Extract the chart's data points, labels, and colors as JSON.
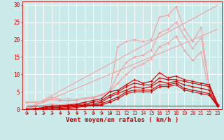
{
  "x": [
    0,
    1,
    2,
    3,
    4,
    5,
    6,
    7,
    8,
    9,
    10,
    11,
    12,
    13,
    14,
    15,
    16,
    17,
    18,
    19,
    20,
    21,
    22,
    23
  ],
  "line_straight1": [
    0.0,
    1.3,
    2.6,
    3.9,
    5.2,
    6.5,
    7.8,
    9.1,
    10.4,
    11.7,
    13.0,
    14.3,
    15.6,
    16.9,
    18.2,
    19.5,
    20.8,
    22.1,
    23.4,
    24.7,
    26.0,
    27.3,
    28.6,
    29.9
  ],
  "line_straight2": [
    0.0,
    1.0,
    2.0,
    3.0,
    4.0,
    5.0,
    6.0,
    7.0,
    8.0,
    9.0,
    10.0,
    11.0,
    12.0,
    13.0,
    14.0,
    15.0,
    16.0,
    17.0,
    18.0,
    19.0,
    20.0,
    21.0,
    22.0,
    23.0
  ],
  "line_pink_markers": [
    2.0,
    2.0,
    2.2,
    3.5,
    2.8,
    3.0,
    2.8,
    3.2,
    3.5,
    4.2,
    5.2,
    18.0,
    19.5,
    20.0,
    19.5,
    20.0,
    26.5,
    27.0,
    29.5,
    23.0,
    19.5,
    23.5,
    6.0,
    null
  ],
  "line_pink2": [
    2.0,
    2.0,
    2.2,
    2.8,
    2.5,
    2.5,
    2.5,
    3.0,
    3.2,
    4.0,
    5.0,
    10.0,
    13.5,
    15.0,
    15.5,
    17.0,
    22.0,
    23.0,
    25.0,
    21.0,
    17.5,
    20.5,
    6.5,
    null
  ],
  "line_pink3": [
    0.5,
    0.8,
    1.0,
    1.5,
    1.2,
    1.5,
    1.5,
    2.0,
    2.5,
    3.0,
    5.0,
    7.5,
    10.0,
    12.0,
    13.0,
    14.5,
    18.0,
    19.0,
    21.0,
    17.0,
    14.0,
    16.5,
    4.5,
    null
  ],
  "lines_dark": [
    [
      0.0,
      0.2,
      0.5,
      1.0,
      1.0,
      1.2,
      1.5,
      2.0,
      2.5,
      3.0,
      5.0,
      5.5,
      7.0,
      8.5,
      7.5,
      8.0,
      10.5,
      9.0,
      9.5,
      8.5,
      8.0,
      7.5,
      7.0,
      1.5
    ],
    [
      0.0,
      0.2,
      0.3,
      0.8,
      0.8,
      1.0,
      1.2,
      1.5,
      2.0,
      2.5,
      4.0,
      5.0,
      6.5,
      7.5,
      7.0,
      7.0,
      9.0,
      8.5,
      8.5,
      8.0,
      7.5,
      7.0,
      6.5,
      1.2
    ],
    [
      0.0,
      0.0,
      0.2,
      0.5,
      0.5,
      0.8,
      1.0,
      1.2,
      1.5,
      2.0,
      3.5,
      4.5,
      5.5,
      6.5,
      6.0,
      6.5,
      8.0,
      7.5,
      8.0,
      7.0,
      6.5,
      6.0,
      5.5,
      1.0
    ],
    [
      0.0,
      0.0,
      0.0,
      0.2,
      0.2,
      0.5,
      0.8,
      1.0,
      1.2,
      1.5,
      2.5,
      3.5,
      5.0,
      5.5,
      5.5,
      5.5,
      7.0,
      7.0,
      7.5,
      6.0,
      5.5,
      5.0,
      4.5,
      1.0
    ],
    [
      0.0,
      0.0,
      0.0,
      0.0,
      0.0,
      0.2,
      0.5,
      0.8,
      1.0,
      1.2,
      2.0,
      3.0,
      4.5,
      5.0,
      5.0,
      5.0,
      6.5,
      6.5,
      7.0,
      5.5,
      5.0,
      4.5,
      4.0,
      0.8
    ]
  ],
  "line_flat": [
    1.0,
    1.0,
    1.0,
    1.0,
    1.0,
    1.0,
    1.0,
    1.0,
    1.0,
    1.0,
    1.0,
    1.0,
    1.0,
    1.0,
    1.0,
    1.0,
    1.0,
    1.0,
    1.0,
    1.0,
    1.0,
    1.0,
    1.0,
    1.0
  ],
  "color_light1": "#f4a0a0",
  "color_light2": "#f4a0a0",
  "color_dark": "#cc0000",
  "color_flat": "#cc0000",
  "bg_color": "#cceaea",
  "grid_color": "#ffffff",
  "xlabel": "Vent moyen/en rafales ( km/h )",
  "xlim": [
    -0.5,
    23.5
  ],
  "ylim": [
    0,
    31
  ],
  "yticks": [
    0,
    5,
    10,
    15,
    20,
    25,
    30
  ],
  "xticks": [
    0,
    1,
    2,
    3,
    4,
    5,
    6,
    7,
    8,
    9,
    10,
    11,
    12,
    13,
    14,
    15,
    16,
    17,
    18,
    19,
    20,
    21,
    22,
    23
  ],
  "arrow_right_x": [
    0,
    1,
    2,
    3,
    4,
    5,
    6,
    7,
    8,
    9,
    10
  ],
  "arrow_left_x": [
    11,
    12,
    13,
    14,
    15,
    16,
    17,
    18,
    19,
    20,
    21,
    22,
    23
  ]
}
